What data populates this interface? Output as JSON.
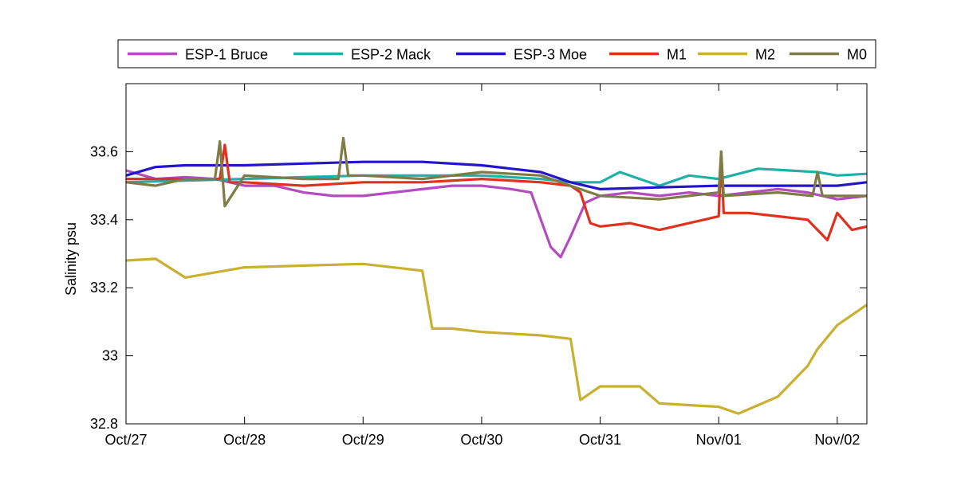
{
  "chart_data": {
    "type": "line",
    "title": "",
    "xlabel": "",
    "ylabel": "Salinity psu",
    "ylim": [
      32.8,
      33.8
    ],
    "y_ticks": [
      32.8,
      33,
      33.2,
      33.4,
      33.6
    ],
    "y_tick_labels": [
      "32.8",
      "33",
      "33.2",
      "33.4",
      "33.6"
    ],
    "xlim": [
      "2012-10-27T00:00",
      "2012-11-02T06:00"
    ],
    "x_ticks": [
      "2012-10-27",
      "2012-10-28",
      "2012-10-29",
      "2012-10-30",
      "2012-10-31",
      "2012-11-01",
      "2012-11-02"
    ],
    "x_tick_labels": [
      "Oct/27",
      "Oct/28",
      "Oct/29",
      "Oct/30",
      "Oct/31",
      "Nov/01",
      "Nov/02"
    ],
    "grid": false,
    "legend": {
      "placement": "top-outside",
      "orientation": "horizontal"
    },
    "series": [
      {
        "name": "ESP-1 Bruce",
        "color": "#b44cc0",
        "x": [
          "2012-10-27T00:00",
          "2012-10-27T06:00",
          "2012-10-27T12:00",
          "2012-10-27T18:00",
          "2012-10-28T00:00",
          "2012-10-28T06:00",
          "2012-10-28T12:00",
          "2012-10-28T18:00",
          "2012-10-29T00:00",
          "2012-10-29T06:00",
          "2012-10-29T12:00",
          "2012-10-29T18:00",
          "2012-10-30T00:00",
          "2012-10-30T06:00",
          "2012-10-30T10:00",
          "2012-10-30T12:00",
          "2012-10-30T14:00",
          "2012-10-30T16:00",
          "2012-10-30T18:00",
          "2012-10-30T21:00",
          "2012-10-31T00:00",
          "2012-10-31T06:00",
          "2012-10-31T12:00",
          "2012-10-31T18:00",
          "2012-11-01T00:00",
          "2012-11-01T06:00",
          "2012-11-01T12:00",
          "2012-11-01T18:00",
          "2012-11-02T00:00",
          "2012-11-02T06:00"
        ],
        "y": [
          33.545,
          33.52,
          33.525,
          33.52,
          33.5,
          33.5,
          33.48,
          33.47,
          33.47,
          33.48,
          33.49,
          33.5,
          33.5,
          33.49,
          33.48,
          33.4,
          33.32,
          33.29,
          33.35,
          33.45,
          33.47,
          33.48,
          33.47,
          33.48,
          33.47,
          33.48,
          33.49,
          33.48,
          33.46,
          33.47
        ]
      },
      {
        "name": "ESP-2 Mack",
        "color": "#1fb0a8",
        "x": [
          "2012-10-27T00:00",
          "2012-10-27T12:00",
          "2012-10-28T00:00",
          "2012-10-28T12:00",
          "2012-10-29T00:00",
          "2012-10-29T12:00",
          "2012-10-30T00:00",
          "2012-10-30T12:00",
          "2012-10-30T18:00",
          "2012-10-31T00:00",
          "2012-10-31T04:00",
          "2012-10-31T08:00",
          "2012-10-31T12:00",
          "2012-10-31T18:00",
          "2012-11-01T00:00",
          "2012-11-01T08:00",
          "2012-11-01T14:00",
          "2012-11-01T20:00",
          "2012-11-02T00:00",
          "2012-11-02T06:00"
        ],
        "y": [
          33.51,
          33.515,
          33.52,
          33.525,
          33.53,
          33.53,
          33.53,
          33.52,
          33.51,
          33.51,
          33.54,
          33.52,
          33.5,
          33.53,
          33.52,
          33.55,
          33.545,
          33.54,
          33.53,
          33.535
        ]
      },
      {
        "name": "ESP-3 Moe",
        "color": "#2415c8",
        "x": [
          "2012-10-27T00:00",
          "2012-10-27T06:00",
          "2012-10-27T12:00",
          "2012-10-28T00:00",
          "2012-10-28T12:00",
          "2012-10-29T00:00",
          "2012-10-29T12:00",
          "2012-10-30T00:00",
          "2012-10-30T12:00",
          "2012-10-30T18:00",
          "2012-10-31T00:00",
          "2012-10-31T12:00",
          "2012-11-01T00:00",
          "2012-11-01T12:00",
          "2012-11-02T00:00",
          "2012-11-02T06:00"
        ],
        "y": [
          33.53,
          33.555,
          33.56,
          33.56,
          33.565,
          33.57,
          33.57,
          33.56,
          33.54,
          33.51,
          33.49,
          33.495,
          33.5,
          33.5,
          33.5,
          33.51
        ]
      },
      {
        "name": "M1",
        "color": "#e0301e",
        "x": [
          "2012-10-27T00:00",
          "2012-10-27T12:00",
          "2012-10-27T19:00",
          "2012-10-27T20:00",
          "2012-10-27T21:00",
          "2012-10-28T00:00",
          "2012-10-28T12:00",
          "2012-10-29T00:00",
          "2012-10-29T12:00",
          "2012-10-30T00:00",
          "2012-10-30T12:00",
          "2012-10-30T18:00",
          "2012-10-30T20:00",
          "2012-10-30T22:00",
          "2012-10-31T00:00",
          "2012-10-31T06:00",
          "2012-10-31T12:00",
          "2012-10-31T18:00",
          "2012-11-01T00:00",
          "2012-11-01T00:30",
          "2012-11-01T01:00",
          "2012-11-01T06:00",
          "2012-11-01T12:00",
          "2012-11-01T18:00",
          "2012-11-01T22:00",
          "2012-11-02T00:00",
          "2012-11-02T03:00",
          "2012-11-02T06:00"
        ],
        "y": [
          33.52,
          33.52,
          33.52,
          33.62,
          33.51,
          33.51,
          33.5,
          33.51,
          33.51,
          33.52,
          33.51,
          33.5,
          33.48,
          33.39,
          33.38,
          33.39,
          33.37,
          33.39,
          33.41,
          33.6,
          33.42,
          33.42,
          33.41,
          33.4,
          33.34,
          33.42,
          33.37,
          33.38
        ]
      },
      {
        "name": "M2",
        "color": "#c9b030",
        "x": [
          "2012-10-27T00:00",
          "2012-10-27T06:00",
          "2012-10-27T12:00",
          "2012-10-28T00:00",
          "2012-10-28T12:00",
          "2012-10-29T00:00",
          "2012-10-29T12:00",
          "2012-10-29T14:00",
          "2012-10-29T18:00",
          "2012-10-30T00:00",
          "2012-10-30T12:00",
          "2012-10-30T18:00",
          "2012-10-30T20:00",
          "2012-10-31T00:00",
          "2012-10-31T08:00",
          "2012-10-31T12:00",
          "2012-11-01T00:00",
          "2012-11-01T04:00",
          "2012-11-01T12:00",
          "2012-11-01T18:00",
          "2012-11-01T20:00",
          "2012-11-02T00:00",
          "2012-11-02T06:00"
        ],
        "y": [
          33.28,
          33.285,
          33.23,
          33.26,
          33.265,
          33.27,
          33.25,
          33.08,
          33.08,
          33.07,
          33.06,
          33.05,
          32.87,
          32.91,
          32.91,
          32.86,
          32.85,
          32.83,
          32.88,
          32.97,
          33.02,
          33.09,
          33.15
        ]
      },
      {
        "name": "M0",
        "color": "#7e7b45",
        "x": [
          "2012-10-27T00:00",
          "2012-10-27T06:00",
          "2012-10-27T12:00",
          "2012-10-27T18:00",
          "2012-10-27T19:00",
          "2012-10-27T20:00",
          "2012-10-28T00:00",
          "2012-10-28T12:00",
          "2012-10-28T19:00",
          "2012-10-28T20:00",
          "2012-10-28T21:00",
          "2012-10-29T00:00",
          "2012-10-29T12:00",
          "2012-10-30T00:00",
          "2012-10-30T12:00",
          "2012-10-30T18:00",
          "2012-10-31T00:00",
          "2012-10-31T12:00",
          "2012-11-01T00:00",
          "2012-11-01T00:30",
          "2012-11-01T01:00",
          "2012-11-01T12:00",
          "2012-11-01T19:00",
          "2012-11-01T20:00",
          "2012-11-01T21:00",
          "2012-11-02T00:00",
          "2012-11-02T06:00"
        ],
        "y": [
          33.51,
          33.5,
          33.52,
          33.52,
          33.63,
          33.44,
          33.53,
          33.52,
          33.52,
          33.64,
          33.53,
          33.53,
          33.52,
          33.54,
          33.53,
          33.5,
          33.47,
          33.46,
          33.48,
          33.6,
          33.47,
          33.48,
          33.47,
          33.54,
          33.47,
          33.47,
          33.47
        ]
      }
    ]
  }
}
